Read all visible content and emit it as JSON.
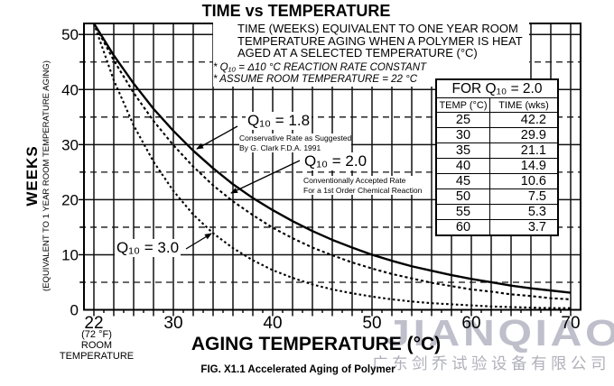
{
  "title": "TIME vs TEMPERATURE",
  "annotation": {
    "heading": "TIME (WEEKS) EQUIVALENT TO ONE YEAR ROOM\nTEMPERATURE AGING WHEN A POLYMER IS HEAT\nAGED AT A SELECTED TEMPERATURE (°C)",
    "notes": "* Q₁₀ = Δ10 °C REACTION RATE CONSTANT\n* ASSUME ROOM TEMPERATURE = 22 °C"
  },
  "reference_table": {
    "header": "FOR Q₁₀ = 2.0",
    "columns": [
      "TEMP (°C)",
      "TIME (wks)"
    ],
    "rows": [
      [
        "25",
        "42.2"
      ],
      [
        "30",
        "29.9"
      ],
      [
        "35",
        "21.1"
      ],
      [
        "40",
        "14.9"
      ],
      [
        "45",
        "10.6"
      ],
      [
        "50",
        "7.5"
      ],
      [
        "55",
        "5.3"
      ],
      [
        "60",
        "3.7"
      ]
    ]
  },
  "curve_labels": [
    {
      "label": "Q₁₀ = 1.8",
      "note": "Conservative Rate as Suggested\nBy G. Clark F.D.A. 1991"
    },
    {
      "label": "Q₁₀ = 2.0",
      "note": "Conventionally Accepted Rate\nFor a 1st Order Chemical Reaction"
    },
    {
      "label": "Q₁₀ = 3.0",
      "note": ""
    }
  ],
  "axes": {
    "y_title": "WEEKS",
    "y_subtitle": "(EQUIVALENT TO 1 YEAR ROOM TEMPERATURE AGING)",
    "x_title": "AGING TEMPERATURE (°C)",
    "x_note": "(72 °F)\nROOM\nTEMPERATURE"
  },
  "caption": "FIG. X1.1 Accelerated Aging of Polymer",
  "watermark": {
    "latin": "JIANQIAO",
    "cjk": "广东剑乔试验设备有限公司",
    "latin_color": "#b5b5c2",
    "cjk_color": "#a8a8b4"
  },
  "chart_data": {
    "type": "line",
    "title": "TIME vs TEMPERATURE",
    "xlabel": "AGING TEMPERATURE (°C)",
    "ylabel": "WEEKS (EQUIVALENT TO 1 YEAR ROOM TEMPERATURE AGING)",
    "xlim": [
      21,
      71
    ],
    "ylim": [
      0,
      52
    ],
    "x_tick_labels": [
      22,
      30,
      40,
      50,
      60,
      70
    ],
    "y_tick_labels": [
      0,
      10,
      20,
      30,
      40,
      50
    ],
    "x_grid": {
      "start": 22,
      "end": 70,
      "step": 2
    },
    "y_solid_grid": [
      10,
      20,
      30,
      40,
      50
    ],
    "y_dashed_grid": [
      5,
      15,
      25,
      35,
      45
    ],
    "grid": true,
    "x": [
      22,
      24,
      26,
      28,
      30,
      32,
      34,
      36,
      38,
      40,
      42,
      44,
      46,
      48,
      50,
      52,
      54,
      56,
      58,
      60,
      62,
      64,
      66,
      68,
      70
    ],
    "series": [
      {
        "name": "Q10 = 1.8",
        "line_style": "solid",
        "values": [
          52,
          46.2,
          41.1,
          36.5,
          32.5,
          28.9,
          25.7,
          22.8,
          20.3,
          18.1,
          16.1,
          14.3,
          12.7,
          11.3,
          10.0,
          8.9,
          7.9,
          7.1,
          6.3,
          5.6,
          5.0,
          4.4,
          3.9,
          3.5,
          3.1
        ]
      },
      {
        "name": "Q10 = 2.0",
        "line_style": "dashed",
        "values": [
          52,
          45.3,
          39.4,
          34.3,
          29.9,
          26.0,
          22.6,
          19.7,
          17.2,
          14.9,
          13.0,
          11.3,
          9.9,
          8.6,
          7.5,
          6.5,
          5.7,
          4.9,
          4.3,
          3.7,
          3.3,
          2.8,
          2.5,
          2.1,
          1.9
        ]
      },
      {
        "name": "Q10 = 3.0",
        "line_style": "dotted",
        "values": [
          52,
          41.7,
          33.5,
          26.9,
          21.6,
          17.3,
          13.9,
          11.2,
          9.0,
          7.2,
          5.8,
          4.6,
          3.7,
          3.0,
          2.4,
          1.9,
          1.5,
          1.2,
          1.0,
          0.8,
          0.6,
          0.5,
          0.4,
          0.3,
          0.3
        ]
      }
    ]
  }
}
